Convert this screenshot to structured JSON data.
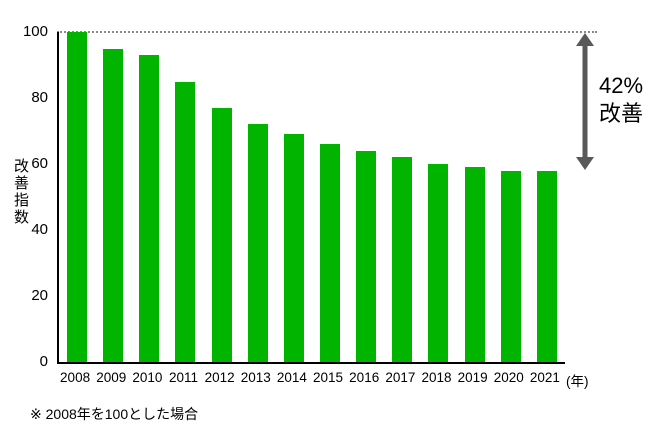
{
  "chart_data": {
    "type": "bar",
    "title": "",
    "categories": [
      "2008",
      "2009",
      "2010",
      "2011",
      "2012",
      "2013",
      "2014",
      "2015",
      "2016",
      "2017",
      "2018",
      "2019",
      "2020",
      "2021"
    ],
    "values": [
      100,
      95,
      93,
      85,
      77,
      72,
      69,
      66,
      64,
      62,
      60,
      59,
      58,
      58
    ],
    "ylabel": "改善指数",
    "x_suffix": "(年)",
    "ylim": [
      0,
      100
    ],
    "yticks": [
      100,
      80,
      60,
      40,
      20,
      0
    ],
    "bar_color": "#00b400",
    "gridline_value": 100,
    "annotation": {
      "arrow_from": 100,
      "arrow_to": 58,
      "line1": "42%",
      "line2": "改善",
      "color": "#595959"
    },
    "footnote": "※ 2008年を100とした場合",
    "legend": "none",
    "grid": "single dotted line at y=100"
  }
}
